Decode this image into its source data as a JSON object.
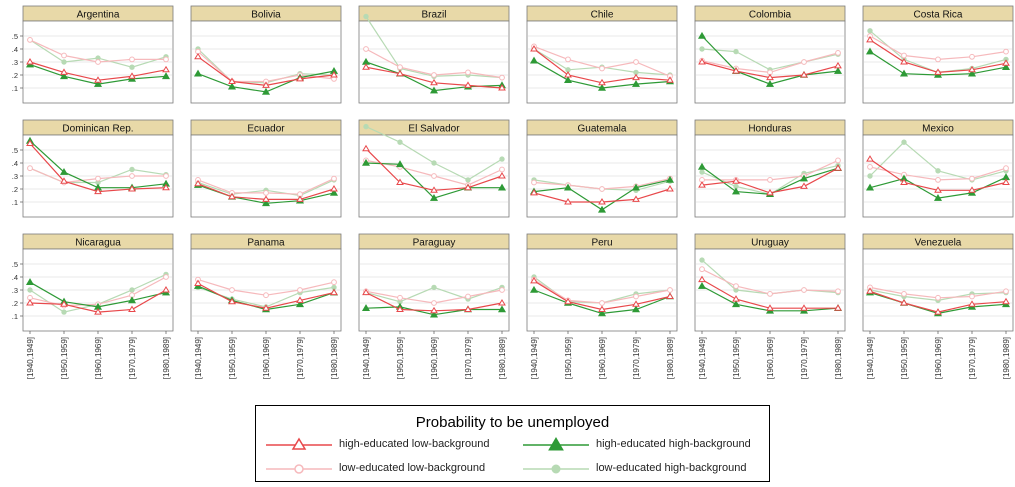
{
  "chart_data": {
    "type": "line",
    "title": "",
    "xlabel": "",
    "ylabel": "",
    "x": [
      "[1940,1949]",
      "[1950,1959]",
      "[1960,1969]",
      "[1970,1979]",
      "[1980,1989]"
    ],
    "yticks": [
      ".1",
      ".2",
      ".3",
      ".4",
      ".5"
    ],
    "ylim": [
      0,
      0.6
    ],
    "grid": true,
    "legend": {
      "title": "Probability to be unemployed",
      "placement": "bottom-center",
      "entries": [
        {
          "label": "high-educated low-background",
          "color": "#e8484b",
          "marker": "hollow-triangle"
        },
        {
          "label": "high-educated high-background",
          "color": "#2e9a36",
          "marker": "filled-triangle"
        },
        {
          "label": "low-educated low-background",
          "color": "#f6b9bc",
          "marker": "hollow-circle"
        },
        {
          "label": "low-educated high-background",
          "color": "#b7dab4",
          "marker": "filled-circle"
        }
      ]
    },
    "panels": [
      {
        "name": "Argentina",
        "series": {
          "hl": [
            0.3,
            0.22,
            0.16,
            0.19,
            0.24
          ],
          "hh": [
            0.28,
            0.19,
            0.13,
            0.17,
            0.19
          ],
          "ll": [
            0.47,
            0.35,
            0.3,
            0.32,
            0.32
          ],
          "lh": [
            0.47,
            0.3,
            0.33,
            0.26,
            0.34
          ]
        }
      },
      {
        "name": "Bolivia",
        "series": {
          "hl": [
            0.34,
            0.15,
            0.12,
            0.17,
            0.2
          ],
          "hh": [
            0.21,
            0.11,
            0.07,
            0.18,
            0.23
          ],
          "ll": [
            0.38,
            0.15,
            0.15,
            0.2,
            0.17
          ],
          "lh": [
            0.4,
            0.15,
            0.14,
            0.21,
            0.2
          ]
        }
      },
      {
        "name": "Brazil",
        "series": {
          "hl": [
            0.26,
            0.21,
            0.14,
            0.12,
            0.1
          ],
          "hh": [
            0.3,
            0.21,
            0.08,
            0.11,
            0.12
          ],
          "ll": [
            0.4,
            0.26,
            0.2,
            0.22,
            0.18
          ],
          "lh": [
            0.65,
            0.25,
            0.19,
            0.2,
            0.18
          ]
        }
      },
      {
        "name": "Chile",
        "series": {
          "hl": [
            0.4,
            0.2,
            0.14,
            0.18,
            0.16
          ],
          "hh": [
            0.31,
            0.16,
            0.1,
            0.13,
            0.15
          ],
          "ll": [
            0.42,
            0.32,
            0.25,
            0.3,
            0.19
          ],
          "lh": [
            0.4,
            0.24,
            0.26,
            0.22,
            0.2
          ]
        }
      },
      {
        "name": "Colombia",
        "series": {
          "hl": [
            0.3,
            0.23,
            0.18,
            0.2,
            0.27
          ],
          "hh": [
            0.5,
            0.23,
            0.13,
            0.2,
            0.23
          ],
          "ll": [
            0.31,
            0.25,
            0.22,
            0.3,
            0.37
          ],
          "lh": [
            0.4,
            0.38,
            0.24,
            0.3,
            0.36
          ]
        }
      },
      {
        "name": "Costa Rica",
        "series": {
          "hl": [
            0.47,
            0.3,
            0.22,
            0.24,
            0.29
          ],
          "hh": [
            0.38,
            0.21,
            0.2,
            0.21,
            0.26
          ],
          "ll": [
            0.5,
            0.35,
            0.32,
            0.34,
            0.38
          ],
          "lh": [
            0.54,
            0.32,
            0.22,
            0.25,
            0.32
          ]
        }
      },
      {
        "name": "Dominican Rep.",
        "series": {
          "hl": [
            0.55,
            0.26,
            0.18,
            0.2,
            0.21
          ],
          "hh": [
            0.57,
            0.33,
            0.21,
            0.21,
            0.24
          ],
          "ll": [
            0.36,
            0.25,
            0.28,
            0.3,
            0.3
          ],
          "lh": [
            0.36,
            0.25,
            0.25,
            0.35,
            0.31
          ]
        }
      },
      {
        "name": "Ecuador",
        "series": {
          "hl": [
            0.24,
            0.14,
            0.12,
            0.12,
            0.2
          ],
          "hh": [
            0.23,
            0.14,
            0.09,
            0.11,
            0.17
          ],
          "ll": [
            0.27,
            0.17,
            0.17,
            0.16,
            0.28
          ],
          "lh": [
            0.25,
            0.16,
            0.19,
            0.15,
            0.27
          ]
        }
      },
      {
        "name": "El Salvador",
        "series": {
          "hl": [
            0.51,
            0.25,
            0.19,
            0.21,
            0.3
          ],
          "hh": [
            0.4,
            0.39,
            0.13,
            0.21,
            0.21
          ],
          "ll": [
            0.42,
            0.37,
            0.3,
            0.23,
            0.35
          ],
          "lh": [
            0.68,
            0.56,
            0.4,
            0.27,
            0.43
          ]
        }
      },
      {
        "name": "Guatemala",
        "series": {
          "hl": [
            0.17,
            0.1,
            0.1,
            0.12,
            0.2
          ],
          "hh": [
            0.18,
            0.21,
            0.04,
            0.21,
            0.27
          ],
          "ll": [
            0.25,
            0.23,
            0.2,
            0.22,
            0.28
          ],
          "lh": [
            0.27,
            0.23,
            0.2,
            0.19,
            0.26
          ]
        }
      },
      {
        "name": "Honduras",
        "series": {
          "hl": [
            0.23,
            0.26,
            0.17,
            0.22,
            0.36
          ],
          "hh": [
            0.37,
            0.18,
            0.16,
            0.28,
            0.36
          ],
          "ll": [
            0.27,
            0.27,
            0.27,
            0.3,
            0.42
          ],
          "lh": [
            0.33,
            0.22,
            0.16,
            0.32,
            0.38
          ]
        }
      },
      {
        "name": "Mexico",
        "series": {
          "hl": [
            0.43,
            0.25,
            0.19,
            0.19,
            0.25
          ],
          "hh": [
            0.21,
            0.28,
            0.13,
            0.17,
            0.29
          ],
          "ll": [
            0.37,
            0.31,
            0.27,
            0.28,
            0.36
          ],
          "lh": [
            0.3,
            0.56,
            0.34,
            0.27,
            0.34
          ]
        }
      },
      {
        "name": "Nicaragua",
        "series": {
          "hl": [
            0.2,
            0.19,
            0.13,
            0.15,
            0.3
          ],
          "hh": [
            0.36,
            0.21,
            0.17,
            0.22,
            0.28
          ],
          "ll": [
            0.24,
            0.18,
            0.19,
            0.26,
            0.4
          ],
          "lh": [
            0.3,
            0.13,
            0.19,
            0.3,
            0.42
          ]
        }
      },
      {
        "name": "Panama",
        "series": {
          "hl": [
            0.35,
            0.21,
            0.16,
            0.22,
            0.28
          ],
          "hh": [
            0.33,
            0.22,
            0.15,
            0.19,
            0.28
          ],
          "ll": [
            0.38,
            0.3,
            0.26,
            0.3,
            0.36
          ],
          "lh": [
            0.32,
            0.23,
            0.17,
            0.28,
            0.32
          ]
        }
      },
      {
        "name": "Paraguay",
        "series": {
          "hl": [
            0.28,
            0.15,
            0.14,
            0.15,
            0.2
          ],
          "hh": [
            0.16,
            0.17,
            0.11,
            0.15,
            0.15
          ],
          "ll": [
            0.29,
            0.24,
            0.2,
            0.25,
            0.3
          ],
          "lh": [
            0.28,
            0.21,
            0.32,
            0.23,
            0.32
          ]
        }
      },
      {
        "name": "Peru",
        "series": {
          "hl": [
            0.37,
            0.21,
            0.15,
            0.19,
            0.25
          ],
          "hh": [
            0.3,
            0.2,
            0.12,
            0.15,
            0.25
          ],
          "ll": [
            0.38,
            0.22,
            0.2,
            0.25,
            0.3
          ],
          "lh": [
            0.4,
            0.21,
            0.2,
            0.27,
            0.3
          ]
        }
      },
      {
        "name": "Uruguay",
        "series": {
          "hl": [
            0.38,
            0.23,
            0.16,
            0.16,
            0.16
          ],
          "hh": [
            0.33,
            0.19,
            0.14,
            0.14,
            0.16
          ],
          "ll": [
            0.46,
            0.33,
            0.27,
            0.3,
            0.29
          ],
          "lh": [
            0.53,
            0.3,
            0.27,
            0.3,
            0.28
          ]
        }
      },
      {
        "name": "Venezuela",
        "series": {
          "hl": [
            0.29,
            0.2,
            0.13,
            0.19,
            0.21
          ],
          "hh": [
            0.28,
            0.2,
            0.12,
            0.17,
            0.19
          ],
          "ll": [
            0.32,
            0.27,
            0.24,
            0.25,
            0.29
          ],
          "lh": [
            0.3,
            0.25,
            0.22,
            0.27,
            0.28
          ]
        }
      }
    ]
  }
}
